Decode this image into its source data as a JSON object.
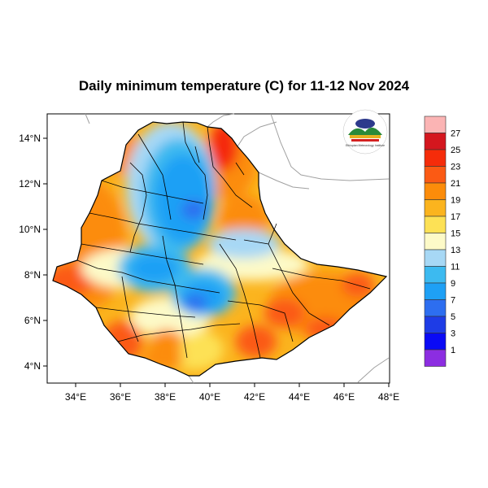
{
  "title": "Daily minimum temperature (C) for 11-12 Nov 2024",
  "axes": {
    "x_ticks": [
      "34°E",
      "36°E",
      "38°E",
      "40°E",
      "42°E",
      "44°E",
      "46°E",
      "48°E"
    ],
    "y_ticks": [
      "14°N",
      "12°N",
      "10°N",
      "8°N",
      "6°N",
      "4°N"
    ],
    "x_range": [
      33,
      48.2
    ],
    "y_range": [
      3.2,
      15
    ]
  },
  "colorbar": {
    "labels": [
      "27",
      "25",
      "23",
      "21",
      "19",
      "17",
      "15",
      "13",
      "11",
      "9",
      "7",
      "5",
      "3",
      "1"
    ],
    "colors": [
      "#fbb4b4",
      "#d4161e",
      "#f52c0a",
      "#fb5a14",
      "#fc8c0a",
      "#fbb41e",
      "#fde155",
      "#fdfac8",
      "#a7d8f5",
      "#3cbaf0",
      "#1ea0f5",
      "#2d6ef0",
      "#1e3ce6",
      "#0a0af5",
      "#8c2de1"
    ]
  },
  "logo": {
    "icon": "ethiopian-meteorology-institute-logo",
    "text": "Ethiopian Meteorology Institute"
  }
}
